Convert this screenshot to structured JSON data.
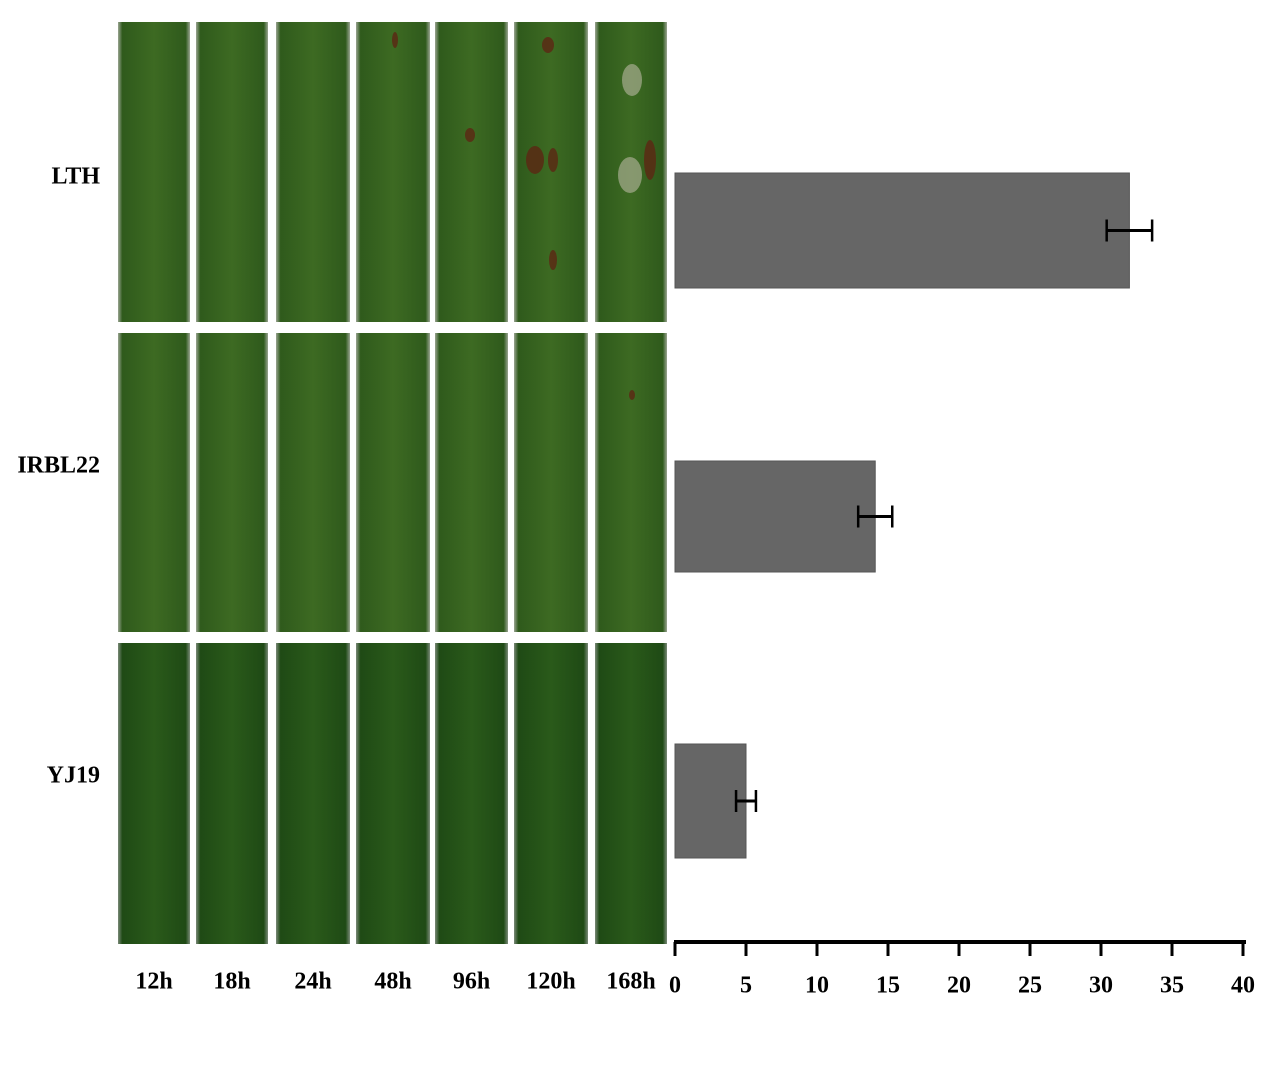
{
  "chart_data": {
    "type": "bar",
    "orientation": "horizontal",
    "categories": [
      "LTH",
      "IRBL22",
      "YJ19"
    ],
    "values": [
      32.0,
      14.1,
      5.0
    ],
    "errors": [
      1.6,
      1.2,
      0.7
    ],
    "color": "#666666",
    "xlim": [
      0,
      40
    ],
    "xticks": [
      0,
      5,
      10,
      15,
      20,
      25,
      30,
      35,
      40
    ],
    "time_points": [
      "12h",
      "18h",
      "24h",
      "48h",
      "96h",
      "120h",
      "168h"
    ]
  }
}
